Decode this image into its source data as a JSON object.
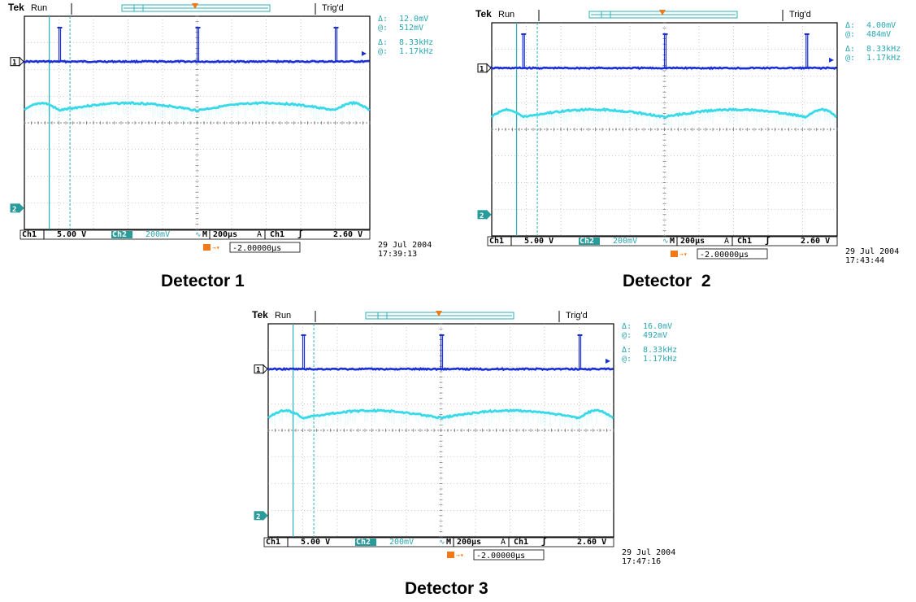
{
  "colors": {
    "ch1": "#1a2fd6",
    "ch2": "#38d9e8",
    "cursor": "#2ab0b8",
    "grid": "#9aa0a6",
    "frame": "#000000",
    "trigger": "#f07818",
    "label_bg": "#2a9b9b",
    "readout": "#2aa6b0"
  },
  "chart_data": [
    {
      "type": "line",
      "caption": "Detector 1",
      "header": {
        "brand": "Tek",
        "state": "Run",
        "trigger_status": "Trig'd"
      },
      "readout": {
        "delta_v_label": "Δ:",
        "delta_v": "12.0mV",
        "at_v_label": "@:",
        "at_v": "512mV",
        "delta_f_label": "Δ:",
        "delta_f": "8.33kHz",
        "at_f_label": "@:",
        "at_f": "1.17kHz"
      },
      "status_bar": {
        "ch1_label": "Ch1",
        "ch1_scale": "5.00 V",
        "ch2_label": "Ch2",
        "ch2_scale": "200mV",
        "timebase_label": "M",
        "timebase": "200µs",
        "trigger_mode": "A",
        "trigger_source": "Ch1",
        "trigger_level": "2.60 V",
        "trigger_position": "-2.00000µs"
      },
      "date": "29 Jul  2004",
      "time": "17:39:13",
      "markers": {
        "ch1": "1",
        "ch2": "2"
      },
      "x_divisions": 10,
      "y_divisions": 8,
      "time_per_div_us": 200,
      "ch1_pulse_times_div": [
        1.0,
        5.0,
        9.0
      ],
      "ch2_dip_times_div": [
        1.0,
        5.0,
        9.0
      ]
    },
    {
      "type": "line",
      "caption": "Detector  2",
      "header": {
        "brand": "Tek",
        "state": "Run",
        "trigger_status": "Trig'd"
      },
      "readout": {
        "delta_v_label": "Δ:",
        "delta_v": "4.00mV",
        "at_v_label": "@:",
        "at_v": "484mV",
        "delta_f_label": "Δ:",
        "delta_f": "8.33kHz",
        "at_f_label": "@:",
        "at_f": "1.17kHz"
      },
      "status_bar": {
        "ch1_label": "Ch1",
        "ch1_scale": "5.00 V",
        "ch2_label": "Ch2",
        "ch2_scale": "200mV",
        "timebase_label": "M",
        "timebase": "200µs",
        "trigger_mode": "A",
        "trigger_source": "Ch1",
        "trigger_level": "2.60 V",
        "trigger_position": "-2.00000µs"
      },
      "date": "29 Jul  2004",
      "time": "17:43:44",
      "markers": {
        "ch1": "1",
        "ch2": "2"
      },
      "x_divisions": 10,
      "y_divisions": 8,
      "time_per_div_us": 200,
      "ch1_pulse_times_div": [
        0.9,
        5.0,
        9.1
      ],
      "ch2_dip_times_div": [
        0.9,
        5.0,
        9.1
      ]
    },
    {
      "type": "line",
      "caption": "Detector 3",
      "header": {
        "brand": "Tek",
        "state": "Run",
        "trigger_status": "Trig'd"
      },
      "readout": {
        "delta_v_label": "Δ:",
        "delta_v": "16.0mV",
        "at_v_label": "@:",
        "at_v": "492mV",
        "delta_f_label": "Δ:",
        "delta_f": "8.33kHz",
        "at_f_label": "@:",
        "at_f": "1.17kHz"
      },
      "status_bar": {
        "ch1_label": "Ch1",
        "ch1_scale": "5.00 V",
        "ch2_label": "Ch2",
        "ch2_scale": "200mV",
        "timebase_label": "M",
        "timebase": "200µs",
        "trigger_mode": "A",
        "trigger_source": "Ch1",
        "trigger_level": "2.60 V",
        "trigger_position": "-2.00000µs"
      },
      "date": "29 Jul  2004",
      "time": "17:47:16",
      "markers": {
        "ch1": "1",
        "ch2": "2"
      },
      "x_divisions": 10,
      "y_divisions": 8,
      "time_per_div_us": 200,
      "ch1_pulse_times_div": [
        1.0,
        5.0,
        9.0
      ],
      "ch2_dip_times_div": [
        1.0,
        5.0,
        9.0
      ]
    }
  ]
}
